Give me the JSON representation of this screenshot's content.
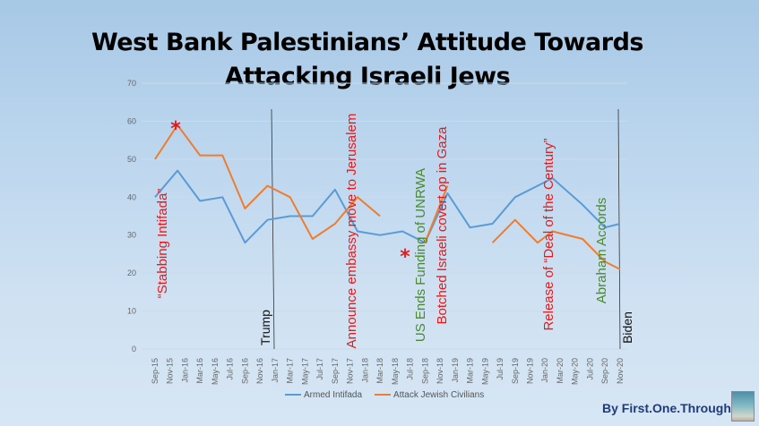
{
  "title_line1": "West Bank Palestinians’ Attitude Towards",
  "title_line2": "Attacking Israeli Jews",
  "credit": "By First.One.Through",
  "annotations": {
    "stabbing": "“Stabbing Intifada”",
    "trump": "Trump",
    "embassy": "Announce embassy move to Jerusalem",
    "unrwa": "US Ends Funding of UNRWA",
    "botched": "Botched Israeli covert op in Gaza",
    "deal": "Release of “Deal of the Century”",
    "abraham": "Abraham Accords",
    "biden": "Biden"
  },
  "chart_data": {
    "type": "line",
    "title": "West Bank Palestinians’ Attitude Towards Attacking Israeli Jews",
    "xlabel": "",
    "ylabel": "",
    "ylim": [
      0,
      70
    ],
    "yticks": [
      0,
      10,
      20,
      30,
      40,
      50,
      60,
      70
    ],
    "xtick_labels": [
      "Sep-15",
      "Nov-15",
      "Jan-16",
      "Mar-16",
      "May-16",
      "Jul-16",
      "Sep-16",
      "Nov-16",
      "Jan-17",
      "Mar-17",
      "May-17",
      "Jul-17",
      "Sep-17",
      "Nov-17",
      "Jan-18",
      "Mar-18",
      "May-18",
      "Jul-18",
      "Sep-18",
      "Nov-18",
      "Jan-19",
      "Mar-19",
      "May-19",
      "Jul-19",
      "Sep-19",
      "Nov-19",
      "Jan-20",
      "Mar-20",
      "May-20",
      "Jul-20",
      "Sep-20",
      "Nov-20"
    ],
    "x": [
      "Sep-15",
      "Dec-15",
      "Mar-16",
      "Jun-16",
      "Sep-16",
      "Dec-16",
      "Mar-17",
      "Jun-17",
      "Sep-17",
      "Dec-17",
      "Mar-18",
      "Jun-18",
      "Sep-18",
      "Dec-18",
      "Mar-19",
      "Jun-19",
      "Sep-19",
      "Dec-19",
      "Mar-20",
      "Jun-20",
      "Sep-20",
      "Nov-20"
    ],
    "x_months_since_sep15": [
      0,
      3,
      6,
      9,
      12,
      15,
      18,
      21,
      24,
      27,
      30,
      33,
      36,
      39,
      42,
      45,
      48,
      51,
      53,
      57,
      60,
      62
    ],
    "series": [
      {
        "name": "Armed Intifada",
        "color": "#5b9bd5",
        "values": [
          40,
          47,
          39,
          40,
          28,
          34,
          35,
          35,
          42,
          31,
          30,
          31,
          28,
          41,
          32,
          33,
          40,
          43,
          45,
          38,
          32,
          33
        ]
      },
      {
        "name": "Attack Jewish Civilians",
        "color": "#ed7d31",
        "values": [
          50,
          59,
          51,
          51,
          37,
          43,
          40,
          29,
          33,
          40,
          35,
          null,
          28,
          43,
          null,
          28,
          34,
          28,
          31,
          29,
          23,
          21
        ]
      }
    ],
    "events": [
      {
        "label_key": "trump",
        "month": 16,
        "type": "line"
      },
      {
        "label_key": "biden",
        "month": 62,
        "type": "line"
      }
    ],
    "legend": "bottom",
    "grid": true
  }
}
